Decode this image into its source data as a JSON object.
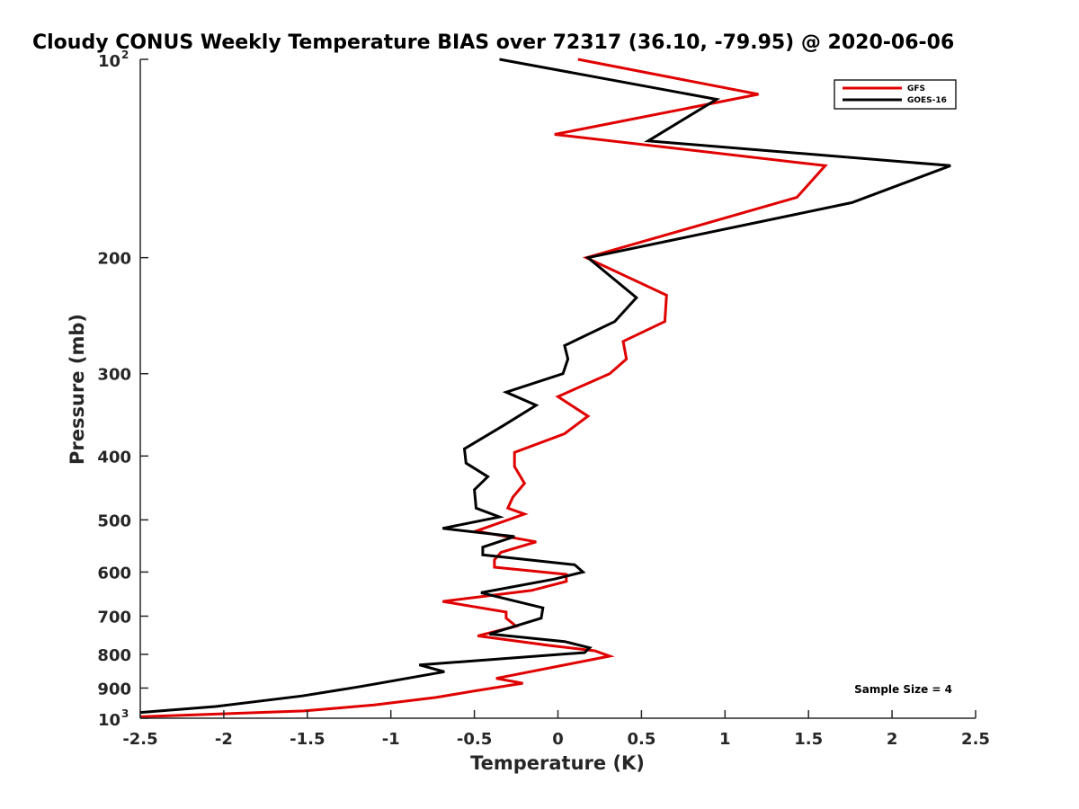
{
  "chart_data": {
    "type": "line",
    "title": "Cloudy CONUS Weekly Temperature BIAS over 72317 (36.10, -79.95) @ 2020-06-06",
    "xlabel": "Temperature (K)",
    "ylabel": "Pressure (mb)",
    "xlim": [
      -2.5,
      2.5
    ],
    "ylim": [
      100,
      1000
    ],
    "yscale": "log",
    "y_reversed": true,
    "grid": false,
    "legend_position": "top-right",
    "x_ticks": [
      -2.5,
      -2,
      -1.5,
      -1,
      -0.5,
      0,
      0.5,
      1,
      1.5,
      2,
      2.5
    ],
    "x_tick_labels": [
      "-2.5",
      "-2",
      "-1.5",
      "-1",
      "-0.5",
      "0",
      "0.5",
      "1",
      "1.5",
      "2",
      "2.5"
    ],
    "y_ticks": [
      100,
      200,
      300,
      400,
      500,
      600,
      700,
      800,
      900,
      1000
    ],
    "y_tick_labels": [
      {
        "base": "10",
        "exp": "2"
      },
      {
        "base": "200",
        "exp": ""
      },
      {
        "base": "300",
        "exp": ""
      },
      {
        "base": "400",
        "exp": ""
      },
      {
        "base": "500",
        "exp": ""
      },
      {
        "base": "600",
        "exp": ""
      },
      {
        "base": "700",
        "exp": ""
      },
      {
        "base": "800",
        "exp": ""
      },
      {
        "base": "900",
        "exp": ""
      },
      {
        "base": "10",
        "exp": "3"
      }
    ],
    "series": [
      {
        "name": "GFS",
        "color": "#e00000",
        "x": [
          0.12,
          1.2,
          -0.02,
          1.6,
          1.43,
          0.17,
          0.65,
          0.64,
          0.39,
          0.41,
          0.31,
          0.0,
          0.18,
          0.04,
          -0.26,
          -0.26,
          -0.2,
          -0.27,
          -0.3,
          -0.2,
          -0.49,
          -0.13,
          -0.34,
          -0.38,
          -0.38,
          0.05,
          0.05,
          -0.16,
          -0.69,
          -0.31,
          -0.31,
          -0.25,
          -0.48,
          -0.06,
          0.22,
          0.31,
          -0.37,
          -0.21,
          -0.51,
          -0.73,
          -1.1,
          -1.52,
          -2.5
        ],
        "y": [
          100,
          113,
          130,
          145,
          162,
          200,
          228,
          250,
          268,
          285,
          300,
          325,
          348,
          370,
          395,
          415,
          440,
          462,
          480,
          490,
          520,
          540,
          560,
          575,
          590,
          605,
          620,
          640,
          665,
          690,
          705,
          725,
          750,
          775,
          790,
          805,
          870,
          885,
          910,
          930,
          955,
          975,
          995
        ]
      },
      {
        "name": "GOES-16",
        "color": "#000000",
        "x": [
          -0.35,
          0.95,
          0.54,
          2.35,
          1.76,
          0.18,
          0.47,
          0.34,
          0.04,
          0.06,
          0.03,
          -0.31,
          -0.13,
          -0.33,
          -0.56,
          -0.55,
          -0.42,
          -0.5,
          -0.49,
          -0.35,
          -0.69,
          -0.26,
          -0.45,
          -0.45,
          0.1,
          0.15,
          -0.02,
          -0.46,
          -0.09,
          -0.1,
          -0.41,
          0.04,
          0.19,
          0.16,
          -0.83,
          -0.68,
          -1.18,
          -1.53,
          -2.05,
          -2.5
        ],
        "y": [
          100,
          115,
          133,
          145,
          165,
          200,
          230,
          250,
          272,
          285,
          300,
          320,
          335,
          360,
          390,
          410,
          430,
          450,
          480,
          495,
          515,
          530,
          550,
          565,
          585,
          600,
          615,
          645,
          680,
          705,
          745,
          765,
          782,
          795,
          830,
          850,
          895,
          925,
          960,
          980
        ]
      }
    ],
    "annotation": "Sample Size = 4"
  }
}
